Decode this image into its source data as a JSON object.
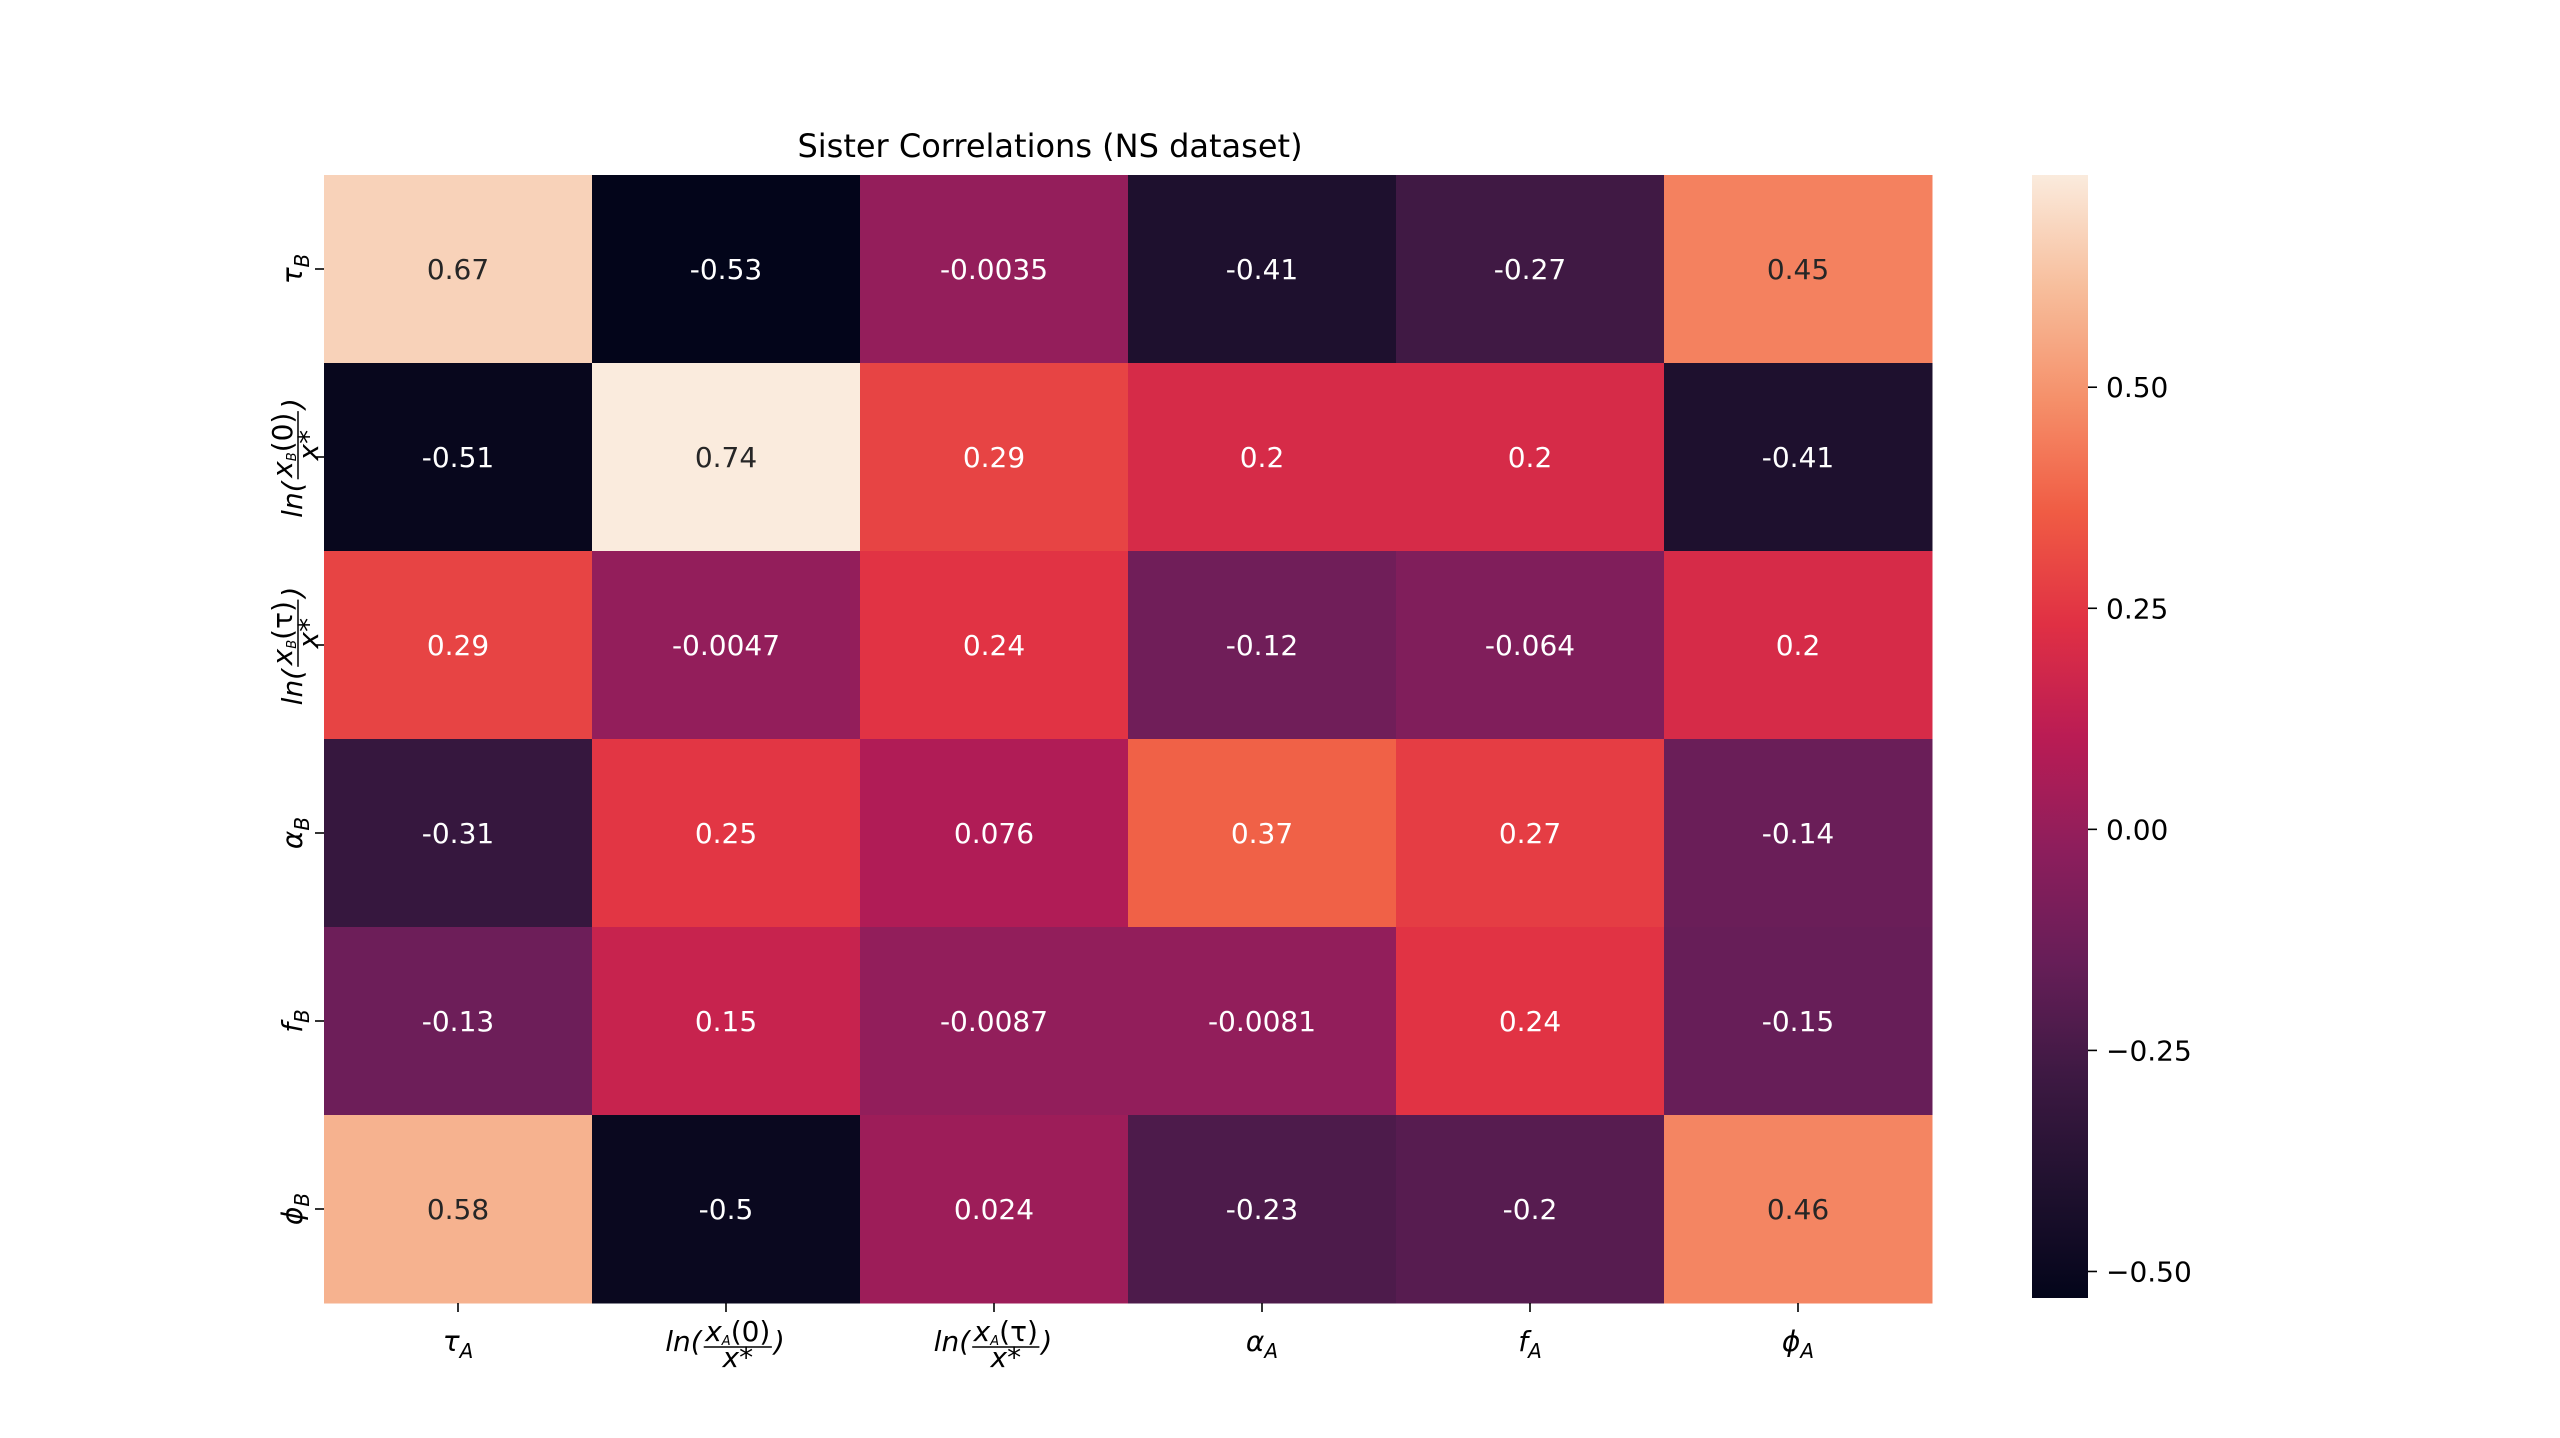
{
  "chart_data": {
    "type": "heatmap",
    "title": "Sister Correlations (NS dataset)",
    "xlabel": "",
    "ylabel": "",
    "x_tick_labels": [
      {
        "main": "τ",
        "sub": "A"
      },
      {
        "main": "ln(",
        "frac_num": "x",
        "frac_num_sub": "A",
        "frac_num_tail": "(0)",
        "frac_den": "x*",
        "tail": ")"
      },
      {
        "main": "ln(",
        "frac_num": "x",
        "frac_num_sub": "A",
        "frac_num_tail": "(τ)",
        "frac_den": "x*",
        "tail": ")"
      },
      {
        "main": "α",
        "sub": "A"
      },
      {
        "main": "f",
        "sub": "A"
      },
      {
        "main": "ϕ",
        "sub": "A"
      }
    ],
    "y_tick_labels": [
      {
        "main": "τ",
        "sub": "B"
      },
      {
        "main": "ln(",
        "frac_num": "x",
        "frac_num_sub": "B",
        "frac_num_tail": "(0)",
        "frac_den": "x*",
        "tail": ")"
      },
      {
        "main": "ln(",
        "frac_num": "x",
        "frac_num_sub": "B",
        "frac_num_tail": "(τ)",
        "frac_den": "x*",
        "tail": ")"
      },
      {
        "main": "α",
        "sub": "B"
      },
      {
        "main": "f",
        "sub": "B"
      },
      {
        "main": "ϕ",
        "sub": "B"
      }
    ],
    "values": [
      [
        0.67,
        -0.53,
        -0.0035,
        -0.41,
        -0.27,
        0.45
      ],
      [
        -0.51,
        0.74,
        0.29,
        0.2,
        0.2,
        -0.41
      ],
      [
        0.29,
        -0.0047,
        0.24,
        -0.12,
        -0.064,
        0.2
      ],
      [
        -0.31,
        0.25,
        0.076,
        0.37,
        0.27,
        -0.14
      ],
      [
        -0.13,
        0.15,
        -0.0087,
        -0.0081,
        0.24,
        -0.15
      ],
      [
        0.58,
        -0.5,
        0.024,
        -0.23,
        -0.2,
        0.46
      ]
    ],
    "value_labels": [
      [
        "0.67",
        "-0.53",
        "-0.0035",
        "-0.41",
        "-0.27",
        "0.45"
      ],
      [
        "-0.51",
        "0.74",
        "0.29",
        "0.2",
        "0.2",
        "-0.41"
      ],
      [
        "0.29",
        "-0.0047",
        "0.24",
        "-0.12",
        "-0.064",
        "0.2"
      ],
      [
        "-0.31",
        "0.25",
        "0.076",
        "0.37",
        "0.27",
        "-0.14"
      ],
      [
        "-0.13",
        "0.15",
        "-0.0087",
        "-0.0081",
        "0.24",
        "-0.15"
      ],
      [
        "0.58",
        "-0.5",
        "0.024",
        "-0.23",
        "-0.2",
        "0.46"
      ]
    ],
    "colormap": "rocket",
    "vmin": -0.53,
    "vmax": 0.74,
    "colorbar": {
      "ticks": [
        0.5,
        0.25,
        0.0,
        -0.25,
        -0.5
      ],
      "tick_labels": [
        "0.50",
        "0.25",
        "0.00",
        "−0.25",
        "−0.50"
      ],
      "placement": "right"
    },
    "grid": false
  }
}
